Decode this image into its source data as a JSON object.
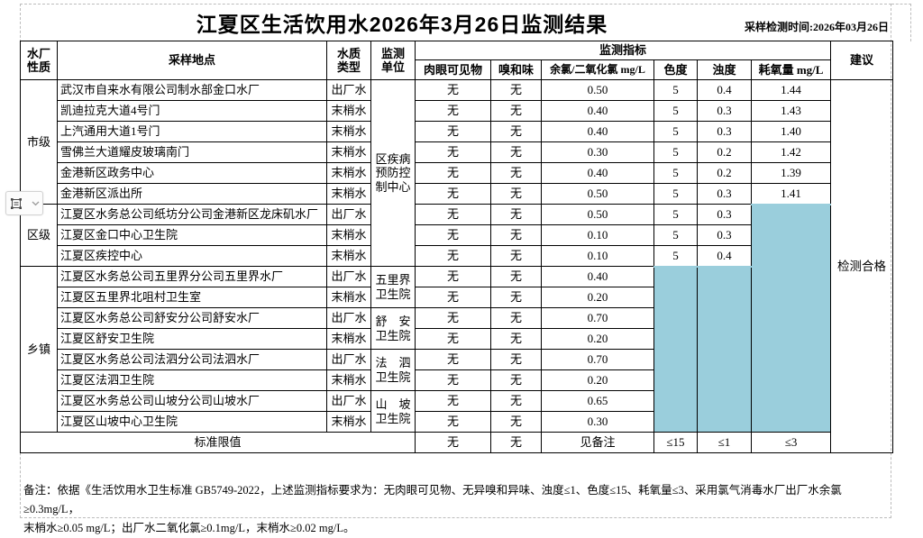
{
  "page": {
    "title": "江夏区生活饮用水2026年3月26日监测结果",
    "sampling_time": "采样检测时间:2026年03月26日"
  },
  "table": {
    "headers": {
      "plant_type": "水厂\n性质",
      "location": "采样地点",
      "water_type": "水质\n类型",
      "unit": "监测\n单位",
      "indicators_group": "监测指标",
      "visible": "肉眼可见物",
      "odor": "嗅和味",
      "chlorine": "余氯/二氧化氯 mg/L",
      "chroma": "色度",
      "turbidity": "浊度",
      "cod": "耗氧量 mg/L",
      "suggestion": "建议"
    },
    "sections": [
      {
        "label": "市级",
        "start": 0,
        "span": 6
      },
      {
        "label": "区级",
        "start": 6,
        "span": 3
      },
      {
        "label": "乡镇",
        "start": 9,
        "span": 8
      }
    ],
    "units": [
      {
        "label": "区疾病\n预防控\n制中心",
        "start": 0,
        "span": 9
      },
      {
        "label": "五里界\n卫生院",
        "start": 9,
        "span": 2
      },
      {
        "label": "舒　安\n卫生院",
        "start": 11,
        "span": 2
      },
      {
        "label": "法　泗\n卫生院",
        "start": 13,
        "span": 2
      },
      {
        "label": "山　坡\n卫生院",
        "start": 15,
        "span": 2
      }
    ],
    "rows": [
      {
        "location": "武汉市自来水有限公司制水部金口水厂",
        "water_type": "出厂水",
        "visible": "无",
        "odor": "无",
        "chlorine": "0.50",
        "chroma": "5",
        "turbidity": "0.4",
        "cod": "1.44"
      },
      {
        "location": "凯迪拉克大道4号门",
        "water_type": "末梢水",
        "visible": "无",
        "odor": "无",
        "chlorine": "0.40",
        "chroma": "5",
        "turbidity": "0.3",
        "cod": "1.43"
      },
      {
        "location": "上汽通用大道1号门",
        "water_type": "末梢水",
        "visible": "无",
        "odor": "无",
        "chlorine": "0.40",
        "chroma": "5",
        "turbidity": "0.3",
        "cod": "1.40"
      },
      {
        "location": "雪佛兰大道耀皮玻璃南门",
        "water_type": "末梢水",
        "visible": "无",
        "odor": "无",
        "chlorine": "0.30",
        "chroma": "5",
        "turbidity": "0.2",
        "cod": "1.42"
      },
      {
        "location": "金港新区政务中心",
        "water_type": "末梢水",
        "visible": "无",
        "odor": "无",
        "chlorine": "0.40",
        "chroma": "5",
        "turbidity": "0.2",
        "cod": "1.39"
      },
      {
        "location": "金港新区派出所",
        "water_type": "末梢水",
        "visible": "无",
        "odor": "无",
        "chlorine": "0.50",
        "chroma": "5",
        "turbidity": "0.3",
        "cod": "1.41"
      },
      {
        "location": "江夏区水务总公司纸坊分公司金港新区龙床矶水厂",
        "water_type": "出厂水",
        "visible": "无",
        "odor": "无",
        "chlorine": "0.50",
        "chroma": "5",
        "turbidity": "0.3",
        "cod": ""
      },
      {
        "location": "江夏区金口中心卫生院",
        "water_type": "末梢水",
        "visible": "无",
        "odor": "无",
        "chlorine": "0.10",
        "chroma": "5",
        "turbidity": "0.3",
        "cod": ""
      },
      {
        "location": "江夏区疾控中心",
        "water_type": "末梢水",
        "visible": "无",
        "odor": "无",
        "chlorine": "0.10",
        "chroma": "5",
        "turbidity": "0.4",
        "cod": ""
      },
      {
        "location": "江夏区水务总公司五里界分公司五里界水厂",
        "water_type": "出厂水",
        "visible": "无",
        "odor": "无",
        "chlorine": "0.40",
        "chroma": "",
        "turbidity": "",
        "cod": ""
      },
      {
        "location": "江夏区五里界北咀村卫生室",
        "water_type": "末梢水",
        "visible": "无",
        "odor": "无",
        "chlorine": "0.20",
        "chroma": "",
        "turbidity": "",
        "cod": ""
      },
      {
        "location": "江夏区水务总公司舒安分公司舒安水厂",
        "water_type": "出厂水",
        "visible": "无",
        "odor": "无",
        "chlorine": "0.70",
        "chroma": "",
        "turbidity": "",
        "cod": ""
      },
      {
        "location": "江夏区舒安卫生院",
        "water_type": "末梢水",
        "visible": "无",
        "odor": "无",
        "chlorine": "0.20",
        "chroma": "",
        "turbidity": "",
        "cod": ""
      },
      {
        "location": "江夏区水务总公司法泗分公司法泗水厂",
        "water_type": "出厂水",
        "visible": "无",
        "odor": "无",
        "chlorine": "0.70",
        "chroma": "",
        "turbidity": "",
        "cod": ""
      },
      {
        "location": "江夏区法泗卫生院",
        "water_type": "末梢水",
        "visible": "无",
        "odor": "无",
        "chlorine": "0.20",
        "chroma": "",
        "turbidity": "",
        "cod": ""
      },
      {
        "location": "江夏区水务总公司山坡分公司山坡水厂",
        "water_type": "出厂水",
        "visible": "无",
        "odor": "无",
        "chlorine": "0.65",
        "chroma": "",
        "turbidity": "",
        "cod": ""
      },
      {
        "location": "江夏区山坡中心卫生院",
        "water_type": "末梢水",
        "visible": "无",
        "odor": "无",
        "chlorine": "0.30",
        "chroma": "",
        "turbidity": "",
        "cod": ""
      }
    ],
    "limits": {
      "label": "标准限值",
      "visible": "无",
      "odor": "无",
      "chlorine": "见备注",
      "chroma": "≤15",
      "turbidity": "≤1",
      "cod": "≤3"
    },
    "suggestion_value": "检测合格",
    "highlight_color": "#9ACEDC"
  },
  "note": {
    "line1": "备注：依据《生活饮用水卫生标准 GB5749-2022，上述监测指标要求为：无肉眼可见物、无异嗅和异味、浊度≤1、色度≤15、耗氧量≤3、采用氯气消毒水厂出厂水余氯≥0.3mg/L，",
    "line2": "末梢水≥0.05 mg/L；出厂水二氧化氯≥0.1mg/L，末梢水≥0.02 mg/L。"
  },
  "floating_button": {
    "icons": [
      "table-borders-icon",
      "chevron-down-icon"
    ]
  }
}
